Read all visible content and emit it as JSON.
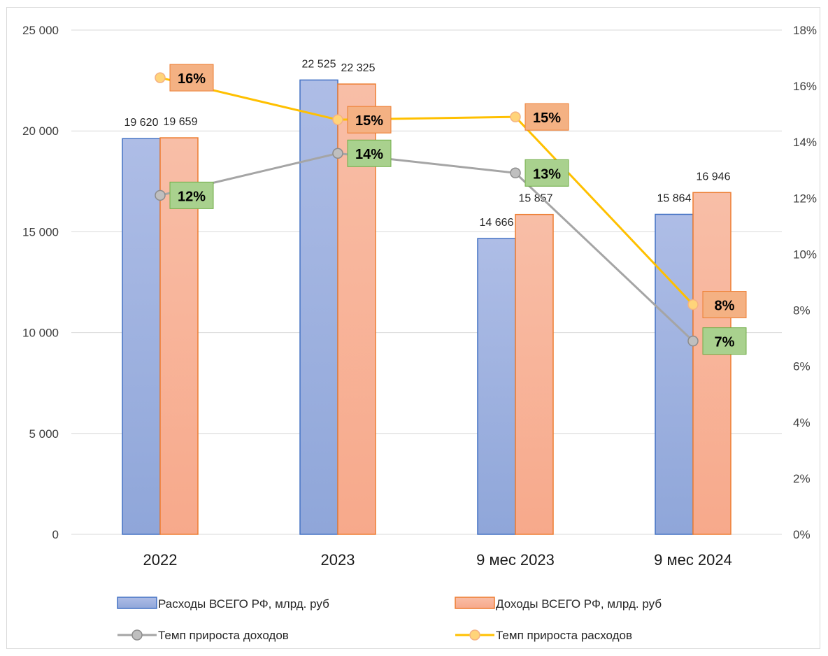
{
  "chart_data": {
    "type": "bar",
    "categories": [
      "2022",
      "2023",
      "9 мес 2023",
      "9 мес 2024"
    ],
    "y_left": {
      "ticks": [
        "0",
        "5 000",
        "10 000",
        "15 000",
        "20 000",
        "25 000"
      ],
      "range": [
        0,
        25000
      ]
    },
    "y_right": {
      "ticks": [
        "0%",
        "2%",
        "4%",
        "6%",
        "8%",
        "10%",
        "12%",
        "14%",
        "16%",
        "18%"
      ],
      "range": [
        0,
        18
      ]
    },
    "grid": true,
    "legend_position": "bottom",
    "bar_series": [
      {
        "name": "Расходы ВСЕГО РФ, млрд. руб",
        "values": [
          19620,
          22525,
          14666,
          15864
        ],
        "labels": [
          "19 620",
          "22 525",
          "14 666",
          "15 864"
        ],
        "color": "#8fa6d9",
        "border": "#4472c4"
      },
      {
        "name": "Доходы ВСЕГО РФ, млрд. руб",
        "values": [
          19659,
          22325,
          15857,
          16946
        ],
        "labels": [
          "19 659",
          "22 325",
          "15 857",
          "16 946"
        ],
        "color": "#f7a98b",
        "border": "#ed7d31"
      }
    ],
    "line_series": [
      {
        "name": "Темп прироста доходов",
        "values": [
          12.1,
          13.6,
          12.9,
          6.9
        ],
        "labels": [
          "12%",
          "14%",
          "13%",
          "7%"
        ],
        "color": "#a5a5a5",
        "label_bg": "#a9d18e",
        "label_border": "#70ad47"
      },
      {
        "name": "Темп прироста расходов",
        "values": [
          16.3,
          14.8,
          14.9,
          8.2
        ],
        "labels": [
          "16%",
          "15%",
          "15%",
          "8%"
        ],
        "color": "#ffc000",
        "label_bg": "#f4b183",
        "label_border": "#ed7d31"
      }
    ]
  }
}
